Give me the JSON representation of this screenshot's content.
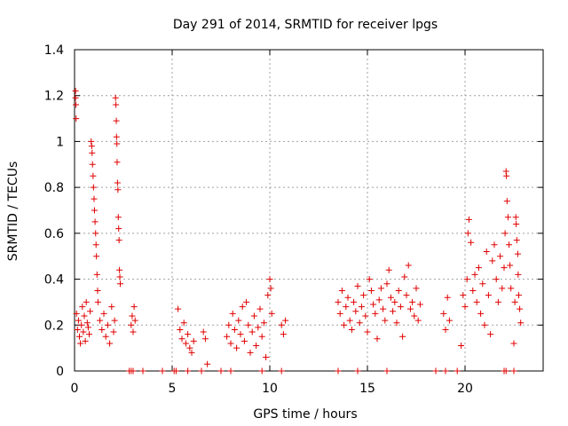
{
  "chart_data": {
    "type": "scatter",
    "title": "Day 291 of 2014, SRMTID for receiver lpgs",
    "xlabel": "GPS time / hours",
    "ylabel": "SRMTID / TECUs",
    "xlim": [
      0,
      24
    ],
    "ylim": [
      0,
      1.4
    ],
    "x_ticks": [
      0,
      5,
      10,
      15,
      20
    ],
    "x_tick_labels": [
      "0",
      "5",
      "10",
      "15",
      "20"
    ],
    "y_ticks": [
      0,
      0.2,
      0.4,
      0.6,
      0.8,
      1.0,
      1.2,
      1.4
    ],
    "y_tick_labels": [
      "0",
      "0.2",
      "0.4",
      "0.6",
      "0.8",
      "1",
      "1.2",
      "1.4"
    ],
    "grid": true,
    "marker": "+",
    "series": [
      {
        "name": "SRMTID",
        "color": "#e00000",
        "points": [
          [
            0.05,
            1.22
          ],
          [
            0.05,
            1.19
          ],
          [
            0.07,
            1.16
          ],
          [
            0.08,
            1.1
          ],
          [
            0.1,
            0.25
          ],
          [
            0.15,
            0.18
          ],
          [
            0.2,
            0.22
          ],
          [
            0.25,
            0.15
          ],
          [
            0.3,
            0.12
          ],
          [
            0.35,
            0.2
          ],
          [
            0.4,
            0.28
          ],
          [
            0.45,
            0.17
          ],
          [
            0.5,
            0.24
          ],
          [
            0.55,
            0.13
          ],
          [
            0.6,
            0.3
          ],
          [
            0.65,
            0.21
          ],
          [
            0.7,
            0.19
          ],
          [
            0.75,
            0.16
          ],
          [
            0.8,
            0.26
          ],
          [
            0.85,
            1.0
          ],
          [
            0.88,
            0.98
          ],
          [
            0.9,
            0.95
          ],
          [
            0.92,
            0.9
          ],
          [
            0.95,
            0.85
          ],
          [
            0.97,
            0.8
          ],
          [
            1.0,
            0.75
          ],
          [
            1.02,
            0.7
          ],
          [
            1.05,
            0.65
          ],
          [
            1.08,
            0.6
          ],
          [
            1.1,
            0.55
          ],
          [
            1.12,
            0.5
          ],
          [
            1.15,
            0.42
          ],
          [
            1.18,
            0.35
          ],
          [
            1.2,
            0.3
          ],
          [
            1.3,
            0.22
          ],
          [
            1.4,
            0.18
          ],
          [
            1.5,
            0.25
          ],
          [
            1.6,
            0.15
          ],
          [
            1.7,
            0.2
          ],
          [
            1.8,
            0.12
          ],
          [
            1.9,
            0.28
          ],
          [
            2.0,
            0.17
          ],
          [
            2.05,
            0.22
          ],
          [
            2.1,
            1.19
          ],
          [
            2.12,
            1.16
          ],
          [
            2.14,
            1.09
          ],
          [
            2.15,
            1.02
          ],
          [
            2.17,
            0.99
          ],
          [
            2.18,
            0.91
          ],
          [
            2.2,
            0.82
          ],
          [
            2.22,
            0.79
          ],
          [
            2.24,
            0.67
          ],
          [
            2.26,
            0.62
          ],
          [
            2.28,
            0.57
          ],
          [
            2.3,
            0.44
          ],
          [
            2.32,
            0.41
          ],
          [
            2.34,
            0.38
          ],
          [
            2.9,
            0.2
          ],
          [
            2.95,
            0.24
          ],
          [
            3.0,
            0.17
          ],
          [
            3.05,
            0.28
          ],
          [
            3.1,
            0.22
          ],
          [
            5.3,
            0.27
          ],
          [
            5.4,
            0.18
          ],
          [
            5.5,
            0.14
          ],
          [
            5.6,
            0.21
          ],
          [
            5.7,
            0.12
          ],
          [
            5.8,
            0.16
          ],
          [
            5.9,
            0.1
          ],
          [
            6.0,
            0.08
          ],
          [
            6.1,
            0.13
          ],
          [
            6.6,
            0.17
          ],
          [
            6.7,
            0.14
          ],
          [
            6.8,
            0.03
          ],
          [
            7.8,
            0.15
          ],
          [
            7.9,
            0.2
          ],
          [
            8.0,
            0.12
          ],
          [
            8.1,
            0.25
          ],
          [
            8.2,
            0.18
          ],
          [
            8.3,
            0.1
          ],
          [
            8.4,
            0.22
          ],
          [
            8.5,
            0.16
          ],
          [
            8.6,
            0.28
          ],
          [
            8.7,
            0.13
          ],
          [
            8.8,
            0.3
          ],
          [
            8.9,
            0.2
          ],
          [
            9.0,
            0.08
          ],
          [
            9.1,
            0.17
          ],
          [
            9.2,
            0.24
          ],
          [
            9.3,
            0.11
          ],
          [
            9.4,
            0.19
          ],
          [
            9.5,
            0.27
          ],
          [
            9.6,
            0.15
          ],
          [
            9.7,
            0.21
          ],
          [
            9.8,
            0.06
          ],
          [
            9.9,
            0.33
          ],
          [
            10.0,
            0.4
          ],
          [
            10.05,
            0.36
          ],
          [
            10.1,
            0.25
          ],
          [
            10.6,
            0.2
          ],
          [
            10.7,
            0.16
          ],
          [
            10.8,
            0.22
          ],
          [
            13.5,
            0.3
          ],
          [
            13.6,
            0.25
          ],
          [
            13.7,
            0.35
          ],
          [
            13.8,
            0.2
          ],
          [
            13.9,
            0.28
          ],
          [
            14.0,
            0.32
          ],
          [
            14.1,
            0.22
          ],
          [
            14.2,
            0.18
          ],
          [
            14.3,
            0.3
          ],
          [
            14.4,
            0.26
          ],
          [
            14.5,
            0.37
          ],
          [
            14.6,
            0.21
          ],
          [
            14.7,
            0.28
          ],
          [
            14.8,
            0.33
          ],
          [
            14.9,
            0.24
          ],
          [
            15.0,
            0.17
          ],
          [
            15.1,
            0.4
          ],
          [
            15.2,
            0.35
          ],
          [
            15.3,
            0.29
          ],
          [
            15.4,
            0.25
          ],
          [
            15.5,
            0.14
          ],
          [
            15.6,
            0.31
          ],
          [
            15.7,
            0.36
          ],
          [
            15.8,
            0.27
          ],
          [
            15.9,
            0.22
          ],
          [
            16.0,
            0.38
          ],
          [
            16.1,
            0.44
          ],
          [
            16.2,
            0.32
          ],
          [
            16.3,
            0.26
          ],
          [
            16.4,
            0.3
          ],
          [
            16.5,
            0.21
          ],
          [
            16.6,
            0.35
          ],
          [
            16.7,
            0.28
          ],
          [
            16.8,
            0.15
          ],
          [
            16.9,
            0.41
          ],
          [
            17.0,
            0.33
          ],
          [
            17.1,
            0.46
          ],
          [
            17.2,
            0.27
          ],
          [
            17.3,
            0.3
          ],
          [
            17.4,
            0.24
          ],
          [
            17.5,
            0.36
          ],
          [
            17.6,
            0.22
          ],
          [
            17.7,
            0.29
          ],
          [
            18.9,
            0.25
          ],
          [
            19.0,
            0.18
          ],
          [
            19.1,
            0.32
          ],
          [
            19.2,
            0.22
          ],
          [
            19.8,
            0.11
          ],
          [
            19.9,
            0.33
          ],
          [
            20.0,
            0.28
          ],
          [
            20.1,
            0.4
          ],
          [
            20.15,
            0.6
          ],
          [
            20.2,
            0.66
          ],
          [
            20.3,
            0.56
          ],
          [
            20.4,
            0.35
          ],
          [
            20.5,
            0.42
          ],
          [
            20.6,
            0.3
          ],
          [
            20.7,
            0.45
          ],
          [
            20.8,
            0.25
          ],
          [
            20.9,
            0.38
          ],
          [
            21.0,
            0.2
          ],
          [
            21.1,
            0.52
          ],
          [
            21.2,
            0.33
          ],
          [
            21.3,
            0.16
          ],
          [
            21.4,
            0.48
          ],
          [
            21.5,
            0.55
          ],
          [
            21.6,
            0.4
          ],
          [
            21.7,
            0.3
          ],
          [
            21.8,
            0.5
          ],
          [
            21.9,
            0.36
          ],
          [
            22.0,
            0.45
          ],
          [
            22.05,
            0.6
          ],
          [
            22.1,
            0.87
          ],
          [
            22.12,
            0.85
          ],
          [
            22.15,
            0.74
          ],
          [
            22.2,
            0.67
          ],
          [
            22.25,
            0.55
          ],
          [
            22.3,
            0.46
          ],
          [
            22.35,
            0.36
          ],
          [
            22.5,
            0.12
          ],
          [
            22.55,
            0.3
          ],
          [
            22.6,
            0.67
          ],
          [
            22.62,
            0.64
          ],
          [
            22.65,
            0.57
          ],
          [
            22.7,
            0.51
          ],
          [
            22.72,
            0.42
          ],
          [
            22.75,
            0.33
          ],
          [
            22.8,
            0.27
          ],
          [
            22.85,
            0.21
          ],
          [
            2.8,
            0.0
          ],
          [
            2.9,
            0.0
          ],
          [
            3.0,
            0.0
          ],
          [
            3.5,
            0.0
          ],
          [
            4.5,
            0.0
          ],
          [
            5.1,
            0.0
          ],
          [
            5.2,
            0.0
          ],
          [
            5.8,
            0.0
          ],
          [
            6.5,
            0.0
          ],
          [
            7.5,
            0.0
          ],
          [
            8.0,
            0.0
          ],
          [
            9.6,
            0.0
          ],
          [
            10.6,
            0.0
          ],
          [
            13.5,
            0.0
          ],
          [
            14.5,
            0.0
          ],
          [
            16.0,
            0.0
          ],
          [
            18.5,
            0.0
          ],
          [
            19.0,
            0.0
          ],
          [
            19.6,
            0.0
          ],
          [
            22.0,
            0.0
          ],
          [
            22.1,
            0.0
          ],
          [
            22.5,
            0.0
          ]
        ]
      }
    ]
  }
}
